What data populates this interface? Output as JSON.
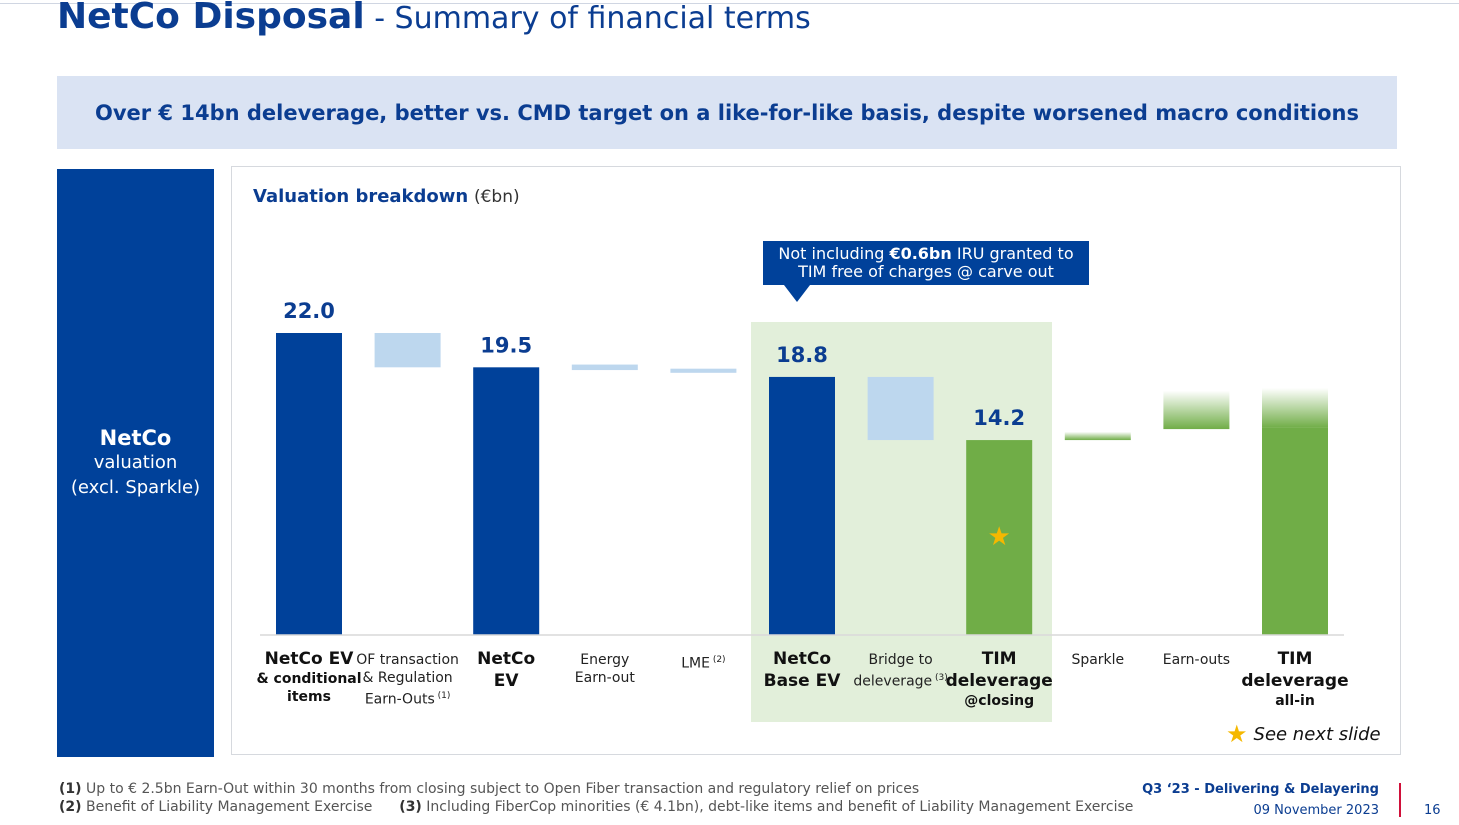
{
  "header": {
    "title_bold": "NetCo Disposal",
    "title_rest": " - Summary of financial terms"
  },
  "banner": {
    "text": "Over € 14bn deleverage, better vs. CMD target on a like-for-like basis, despite worsened macro conditions"
  },
  "sidebar": {
    "line1": "NetCo",
    "line2": "valuation",
    "line3": "(excl. Sparkle)"
  },
  "panel": {
    "title": "Valuation breakdown",
    "unit": "(€bn)"
  },
  "callout": {
    "prefix": "Not including ",
    "bold": "€0.6bn",
    "suffix": " IRU granted to TIM free of charges @ carve out"
  },
  "legend": {
    "text": "See next slide"
  },
  "chart_data": {
    "type": "bar",
    "subtype": "waterfall",
    "categories": [
      "NetCo EV & conditional items",
      "OF transaction & Regulation Earn-Outs (1)",
      "NetCo EV",
      "Energy Earn-out",
      "LME (2)",
      "NetCo Base EV",
      "Bridge to deleverage (3)",
      "TIM deleverage @closing",
      "Sparkle",
      "Earn-outs",
      "TIM deleverage all-in"
    ],
    "bars": [
      {
        "kind": "total",
        "bottom": 0,
        "top": 22.0,
        "label": "22.0",
        "color": "#00419a"
      },
      {
        "kind": "delta",
        "bottom": 19.5,
        "top": 22.0,
        "label": "",
        "color": "#bdd7ee"
      },
      {
        "kind": "total",
        "bottom": 0,
        "top": 19.5,
        "label": "19.5",
        "color": "#00419a"
      },
      {
        "kind": "delta",
        "bottom": 19.3,
        "top": 19.7,
        "label": "",
        "color": "#bdd7ee"
      },
      {
        "kind": "delta",
        "bottom": 19.1,
        "top": 19.4,
        "label": "",
        "color": "#bdd7ee"
      },
      {
        "kind": "total",
        "bottom": 0,
        "top": 18.8,
        "label": "18.8",
        "color": "#00419a"
      },
      {
        "kind": "delta",
        "bottom": 14.2,
        "top": 18.8,
        "label": "",
        "color": "#bdd7ee"
      },
      {
        "kind": "total",
        "bottom": 0,
        "top": 14.2,
        "label": "14.2",
        "color": "#70ad47",
        "star": true
      },
      {
        "kind": "delta-fade",
        "bottom": 14.2,
        "top": 14.8,
        "label": "",
        "color": "#70ad47"
      },
      {
        "kind": "delta-fade",
        "bottom": 15.0,
        "top": 17.8,
        "label": "",
        "color": "#70ad47"
      },
      {
        "kind": "total-fade",
        "bottom": 0,
        "top": 18.0,
        "label": "",
        "color": "#70ad47"
      }
    ],
    "title": "Valuation breakdown",
    "ylabel": "",
    "ylim": [
      0,
      22.0
    ],
    "grid": false
  },
  "category_labels": [
    {
      "big": "NetCo EV",
      "small": "& conditional items"
    },
    {
      "l1": "OF transaction",
      "l2": "& Regulation",
      "l3": "Earn-Outs",
      "sup": "(1)"
    },
    {
      "big": "NetCo",
      "big2": "EV"
    },
    {
      "l1": "Energy",
      "l2": "Earn-out"
    },
    {
      "l1": "LME",
      "sup": "(2)"
    },
    {
      "big": "NetCo",
      "big2": "Base EV"
    },
    {
      "l1": "Bridge to",
      "l2": "deleverage",
      "sup": "(3)"
    },
    {
      "big": "TIM",
      "big2": "deleverage",
      "small": "@closing"
    },
    {
      "l1": "Sparkle"
    },
    {
      "l1": "Earn-outs"
    },
    {
      "big": "TIM",
      "big2": "deleverage",
      "small": "all-in"
    }
  ],
  "footnotes": {
    "f1_num": "(1)",
    "f1_text": " Up to € 2.5bn Earn-Out within 30 months from closing subject to Open Fiber transaction and regulatory relief on prices",
    "f2_num": "(2)",
    "f2_text": " Benefit of Liability Management Exercise",
    "f3_num": "(3)",
    "f3_text": " Including FiberCop minorities (€ 4.1bn), debt-like items and benefit of Liability Management Exercise"
  },
  "footer": {
    "line1": "Q3 ‘23 - Delivering & Delayering",
    "line2": "09 November 2023",
    "page": "16"
  },
  "colors": {
    "navy": "#00419a",
    "light_blue": "#bdd7ee",
    "green": "#70ad47",
    "highlight": "#e2efda",
    "star": "#f5b800"
  }
}
